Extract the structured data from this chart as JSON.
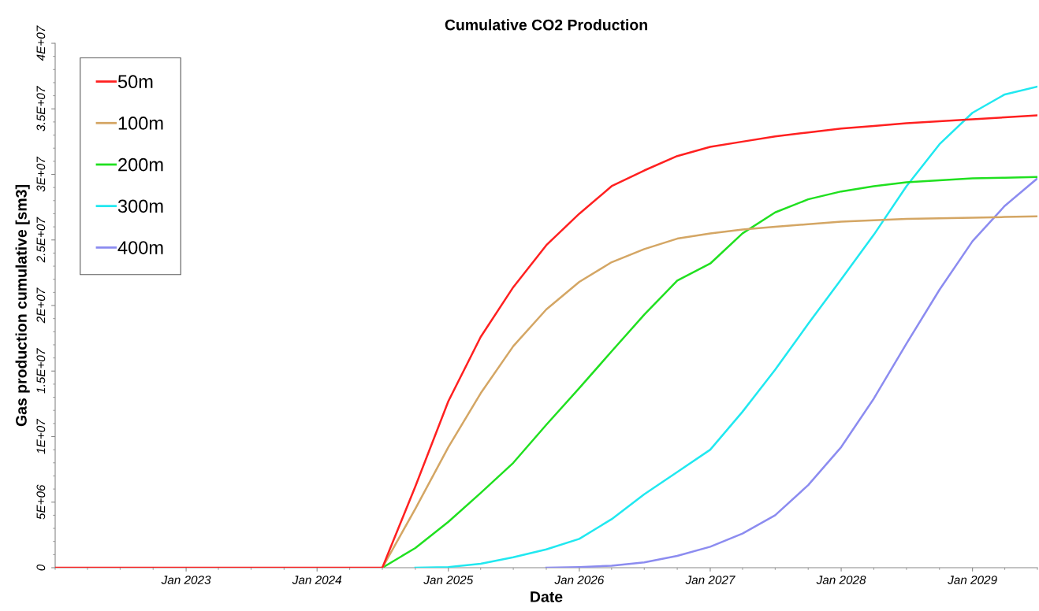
{
  "chart_data": {
    "type": "line",
    "title": "Cumulative CO2 Production",
    "xlabel": "Date",
    "ylabel": "Gas production cumulative [sm3]",
    "x": [
      "2022-01-01",
      "2024-07-01",
      "2024-10-01",
      "2025-01-01",
      "2025-04-01",
      "2025-07-01",
      "2025-10-01",
      "2026-01-01",
      "2026-04-01",
      "2026-07-01",
      "2026-10-01",
      "2027-01-01",
      "2027-04-01",
      "2027-07-01",
      "2027-10-01",
      "2028-01-01",
      "2028-04-01",
      "2028-07-01",
      "2028-10-01",
      "2029-01-01",
      "2029-04-01",
      "2029-07-01"
    ],
    "series": [
      {
        "name": "50m",
        "color": "#ff2020",
        "values": [
          0,
          0,
          6200000,
          12700000,
          17600000,
          21400000,
          24600000,
          27000000,
          29100000,
          30300000,
          31400000,
          32100000,
          32500000,
          32900000,
          33200000,
          33500000,
          33700000,
          33900000,
          34050000,
          34200000,
          34350000,
          34500000
        ]
      },
      {
        "name": "100m",
        "color": "#d4a664",
        "values": [
          null,
          0,
          4500000,
          9200000,
          13300000,
          16900000,
          19700000,
          21800000,
          23300000,
          24300000,
          25100000,
          25500000,
          25800000,
          26000000,
          26200000,
          26400000,
          26500000,
          26600000,
          26650000,
          26700000,
          26750000,
          26800000
        ]
      },
      {
        "name": "200m",
        "color": "#20e020",
        "values": [
          null,
          0,
          1500000,
          3500000,
          5700000,
          8000000,
          10900000,
          13700000,
          16500000,
          19300000,
          21900000,
          23200000,
          25500000,
          27100000,
          28100000,
          28700000,
          29100000,
          29400000,
          29550000,
          29700000,
          29750000,
          29800000
        ]
      },
      {
        "name": "300m",
        "color": "#20e8f0",
        "values": [
          null,
          null,
          0,
          50000,
          300000,
          800000,
          1400000,
          2200000,
          3700000,
          5600000,
          7300000,
          9000000,
          11900000,
          15100000,
          18600000,
          22000000,
          25400000,
          29100000,
          32300000,
          34700000,
          36100000,
          36700000
        ]
      },
      {
        "name": "400m",
        "color": "#8c8cf0",
        "values": [
          null,
          null,
          null,
          null,
          null,
          null,
          0,
          50000,
          150000,
          400000,
          900000,
          1600000,
          2600000,
          4000000,
          6300000,
          9200000,
          12900000,
          17100000,
          21200000,
          24900000,
          27600000,
          29700000
        ]
      }
    ],
    "xlim": [
      "2022-01-01",
      "2029-07-01"
    ],
    "xticks": [
      {
        "value": "2023-01-01",
        "label": "Jan 2023"
      },
      {
        "value": "2024-01-01",
        "label": "Jan 2024"
      },
      {
        "value": "2025-01-01",
        "label": "Jan 2025"
      },
      {
        "value": "2026-01-01",
        "label": "Jan 2026"
      },
      {
        "value": "2027-01-01",
        "label": "Jan 2027"
      },
      {
        "value": "2028-01-01",
        "label": "Jan 2028"
      },
      {
        "value": "2029-01-01",
        "label": "Jan 2029"
      }
    ],
    "ylim": [
      0,
      40000000
    ],
    "yticks": [
      0,
      {
        "value": 5000000,
        "label": "5E+06"
      },
      {
        "value": 10000000,
        "label": "1E+07"
      },
      {
        "value": 15000000,
        "label": "1.5E+07"
      },
      {
        "value": 20000000,
        "label": "2E+07"
      },
      {
        "value": 25000000,
        "label": "2.5E+07"
      },
      {
        "value": 30000000,
        "label": "3E+07"
      },
      {
        "value": 35000000,
        "label": "3.5E+07"
      },
      {
        "value": 40000000,
        "label": "4E+07"
      }
    ],
    "legend": "top left",
    "grid": false,
    "marker": "none",
    "line_style": "solid"
  }
}
